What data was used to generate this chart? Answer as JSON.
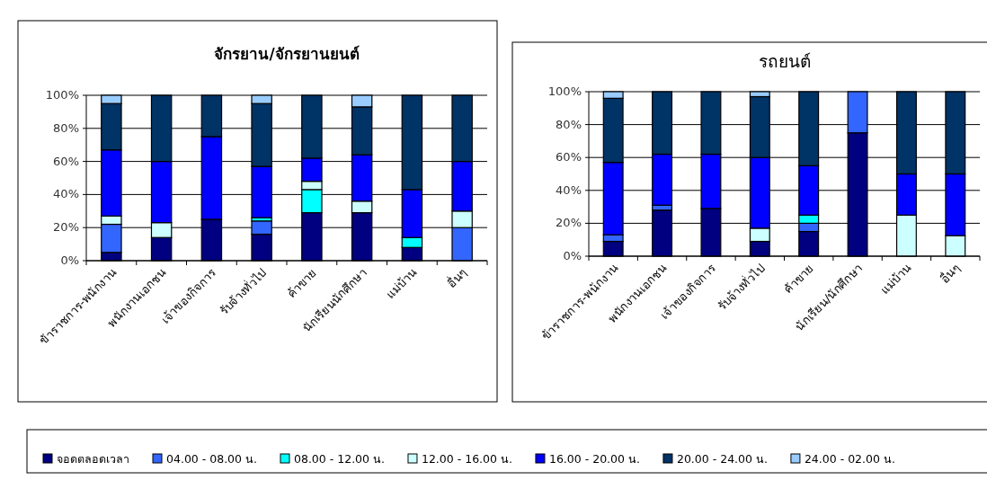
{
  "chart_data": [
    {
      "type": "bar",
      "stacked": true,
      "title": "จักรยาน/จักรยานยนต์",
      "categories": [
        "ข้าราชการ-พนักงาน",
        "พนักงานเอกชน",
        "เจ้าของกิจการ",
        "รับจ้างทั่วไป",
        "ค้าขาย",
        "นักเรียนนักศึกษา",
        "แม่บ้าน",
        "อื่นๆ"
      ],
      "ylim": [
        0,
        100
      ],
      "yticks": [
        {
          "value": 0,
          "label": "0%"
        },
        {
          "value": 20,
          "label": "20%"
        },
        {
          "value": 40,
          "label": "40%"
        },
        {
          "value": 60,
          "label": "60%"
        },
        {
          "value": 80,
          "label": "80%"
        },
        {
          "value": 100,
          "label": "100%"
        }
      ],
      "grid": "y",
      "legend": "bottom",
      "series": [
        {
          "name": "จอดตลอดเวลา",
          "color": "#000080",
          "values": [
            5,
            14,
            25,
            16,
            29,
            29,
            8,
            0
          ]
        },
        {
          "name": "04.00 - 08.00 น.",
          "color": "#3366ff",
          "values": [
            17,
            0,
            0,
            8,
            0,
            0,
            0,
            20
          ]
        },
        {
          "name": "08.00 - 12.00 น.",
          "color": "#00ffff",
          "values": [
            0,
            0,
            0,
            2,
            14,
            0,
            6,
            0
          ]
        },
        {
          "name": "12.00 - 16.00 น.",
          "color": "#ccffff",
          "values": [
            5,
            9,
            0,
            0,
            5,
            7,
            0,
            10
          ]
        },
        {
          "name": "16.00 - 20.00 น.",
          "color": "#0000ff",
          "values": [
            40,
            37,
            50,
            31,
            14,
            28,
            29,
            30
          ]
        },
        {
          "name": "20.00 - 24.00 น.",
          "color": "#003366",
          "values": [
            28,
            40,
            25,
            38,
            38,
            29,
            57,
            40
          ]
        },
        {
          "name": "24.00 - 02.00 น.",
          "color": "#99ccff",
          "values": [
            5,
            0,
            0,
            5,
            0,
            7,
            0,
            0
          ]
        }
      ]
    },
    {
      "type": "bar",
      "stacked": true,
      "title": "รถยนต์",
      "categories": [
        "ข้าราชการ-พนักงาน",
        "พนักงานเอกชน",
        "เจ้าของกิจการ",
        "รับจ้างทั่วไป",
        "ค้าขาย",
        "นักเรียน/นักศึกษา",
        "แม่บ้าน",
        "อื่นๆ"
      ],
      "ylim": [
        0,
        100
      ],
      "yticks": [
        {
          "value": 0,
          "label": "0%"
        },
        {
          "value": 20,
          "label": "20%"
        },
        {
          "value": 40,
          "label": "40%"
        },
        {
          "value": 60,
          "label": "60%"
        },
        {
          "value": 80,
          "label": "80%"
        },
        {
          "value": 100,
          "label": "100%"
        }
      ],
      "grid": "y",
      "legend": "bottom",
      "series": [
        {
          "name": "จอดตลอดเวลา",
          "color": "#000080",
          "values": [
            9,
            28,
            29,
            9,
            15,
            75,
            0,
            0
          ]
        },
        {
          "name": "04.00 - 08.00 น.",
          "color": "#3366ff",
          "values": [
            4,
            3,
            0,
            0,
            5,
            25,
            0,
            0
          ]
        },
        {
          "name": "08.00 - 12.00 น.",
          "color": "#00ffff",
          "values": [
            0,
            0,
            0,
            0,
            5,
            0,
            0,
            0
          ]
        },
        {
          "name": "12.00 - 16.00 น.",
          "color": "#ccffff",
          "values": [
            0,
            0,
            0,
            8,
            0,
            0,
            25,
            12.5
          ]
        },
        {
          "name": "16.00 - 20.00 น.",
          "color": "#0000ff",
          "values": [
            44,
            31,
            33,
            43,
            30,
            0,
            25,
            37.5
          ]
        },
        {
          "name": "20.00 - 24.00 น.",
          "color": "#003366",
          "values": [
            39,
            38,
            38,
            37,
            45,
            0,
            50,
            50
          ]
        },
        {
          "name": "24.00 - 02.00 น.",
          "color": "#99ccff",
          "values": [
            4,
            0,
            0,
            3,
            0,
            0,
            0,
            0
          ]
        }
      ]
    }
  ]
}
